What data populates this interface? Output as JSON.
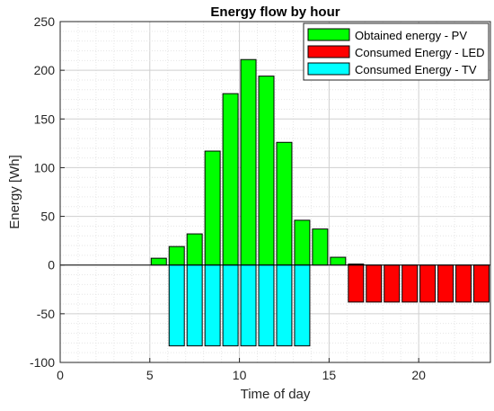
{
  "chart_data": {
    "type": "bar",
    "title": "Energy flow by hour",
    "xlabel": "Time of day",
    "ylabel": "Energy [Wh]",
    "xlim": [
      0,
      24
    ],
    "ylim": [
      -100,
      250
    ],
    "x_ticks": [
      0,
      5,
      10,
      15,
      20
    ],
    "y_ticks": [
      -100,
      -50,
      0,
      50,
      100,
      150,
      200,
      250
    ],
    "grid": true,
    "legend_position": "top-right",
    "x": [
      0.5,
      1.5,
      2.5,
      3.5,
      4.5,
      5.5,
      6.5,
      7.5,
      8.5,
      9.5,
      10.5,
      11.5,
      12.5,
      13.5,
      14.5,
      15.5,
      16.5,
      17.5,
      18.5,
      19.5,
      20.5,
      21.5,
      22.5,
      23.5
    ],
    "series": [
      {
        "name": "Obtained energy - PV",
        "color": "#00ff00",
        "values": [
          0,
          0,
          0,
          0,
          0,
          7,
          19,
          32,
          117,
          176,
          211,
          194,
          126,
          46,
          37,
          8,
          1,
          0,
          0,
          0,
          0,
          0,
          0,
          0
        ]
      },
      {
        "name": "Consumed Energy - LED",
        "color": "#ff0000",
        "values": [
          0,
          0,
          0,
          0,
          0,
          0,
          0,
          0,
          0,
          0,
          0,
          0,
          0,
          0,
          0,
          0,
          -38,
          -38,
          -38,
          -38,
          -38,
          -38,
          -38,
          -38
        ]
      },
      {
        "name": "Consumed Energy - TV",
        "color": "#00ffff",
        "values": [
          0,
          0,
          0,
          0,
          0,
          0,
          -83,
          -83,
          -83,
          -83,
          -83,
          -83,
          -83,
          -83,
          0,
          0,
          0,
          0,
          0,
          0,
          0,
          0,
          0,
          0
        ]
      }
    ]
  }
}
